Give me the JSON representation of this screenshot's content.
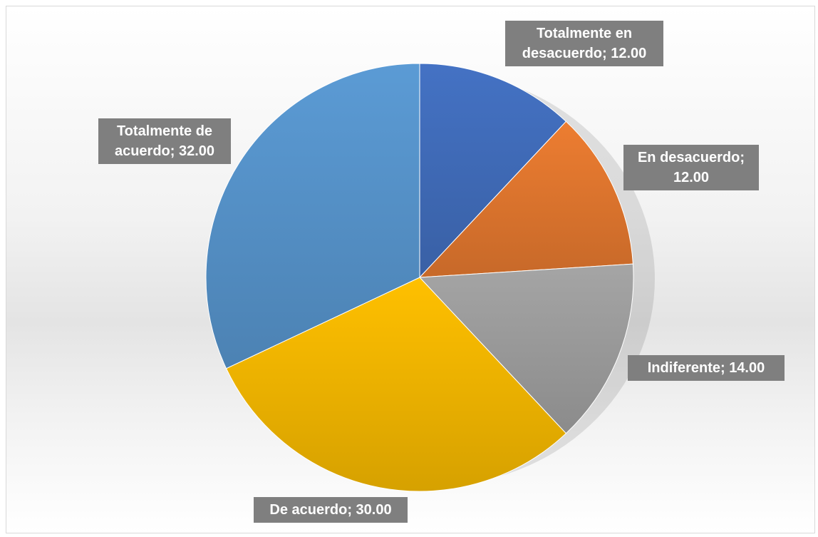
{
  "chart_data": {
    "type": "pie",
    "title": "",
    "slices": [
      {
        "category": "Totalmente en desacuerdo",
        "value": 12.0,
        "label_line1": "Totalmente en",
        "label_line2": "desacuerdo; 12.00",
        "color": "#4472c4"
      },
      {
        "category": "En desacuerdo",
        "value": 12.0,
        "label_line1": "En desacuerdo;",
        "label_line2": "12.00",
        "color": "#ed7d31"
      },
      {
        "category": "Indiferente",
        "value": 14.0,
        "label_line1": "Indiferente; 14.00",
        "label_line2": "",
        "color": "#a5a5a5"
      },
      {
        "category": "De acuerdo",
        "value": 30.0,
        "label_line1": "De acuerdo; 30.00",
        "label_line2": "",
        "color": "#ffc000"
      },
      {
        "category": "Totalmente de acuerdo",
        "value": 32.0,
        "label_line1": "Totalmente de",
        "label_line2": "acuerdo; 32.00",
        "color": "#5b9bd5"
      }
    ],
    "legend": "none",
    "data_labels": "category; value"
  }
}
